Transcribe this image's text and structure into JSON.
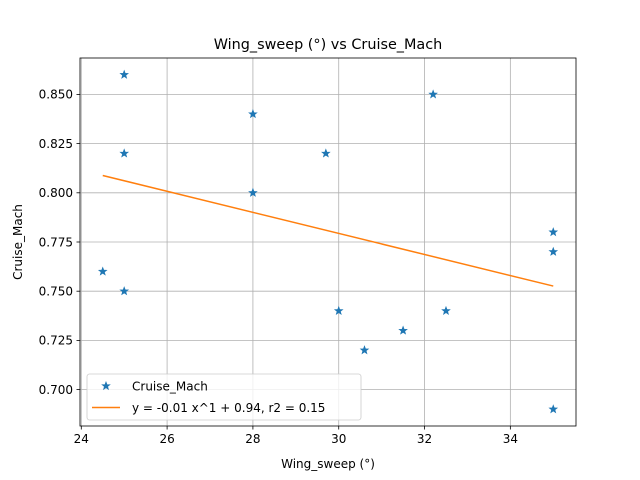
{
  "chart_data": {
    "type": "scatter",
    "title": "Wing_sweep (°) vs Cruise_Mach",
    "xlabel": "Wing_sweep (°)",
    "ylabel": "Cruise_Mach",
    "xlim": [
      23.97,
      35.53
    ],
    "ylim": [
      0.6815,
      0.8685
    ],
    "xticks": [
      24,
      26,
      28,
      30,
      32,
      34
    ],
    "xtick_labels": [
      "24",
      "26",
      "28",
      "30",
      "32",
      "34"
    ],
    "yticks": [
      0.7,
      0.725,
      0.75,
      0.775,
      0.8,
      0.825,
      0.85
    ],
    "ytick_labels": [
      "0.700",
      "0.725",
      "0.750",
      "0.775",
      "0.800",
      "0.825",
      "0.850"
    ],
    "grid": true,
    "legend_position": "lower-left",
    "series": [
      {
        "name": "Cruise_Mach",
        "kind": "scatter",
        "marker": "star",
        "color": "#1f77b4",
        "points": [
          {
            "x": 24.5,
            "y": 0.76
          },
          {
            "x": 25.0,
            "y": 0.86
          },
          {
            "x": 25.0,
            "y": 0.82
          },
          {
            "x": 25.0,
            "y": 0.75
          },
          {
            "x": 28.0,
            "y": 0.84
          },
          {
            "x": 28.0,
            "y": 0.8
          },
          {
            "x": 29.7,
            "y": 0.82
          },
          {
            "x": 30.0,
            "y": 0.74
          },
          {
            "x": 30.6,
            "y": 0.72
          },
          {
            "x": 31.5,
            "y": 0.73
          },
          {
            "x": 32.2,
            "y": 0.85
          },
          {
            "x": 32.5,
            "y": 0.74
          },
          {
            "x": 35.0,
            "y": 0.78
          },
          {
            "x": 35.0,
            "y": 0.77
          },
          {
            "x": 35.0,
            "y": 0.69
          }
        ]
      },
      {
        "name": "y = -0.01 x^1 + 0.94, r2 = 0.15",
        "kind": "line",
        "color": "#ff7f0e",
        "points": [
          {
            "x": 24.5,
            "y": 0.8088
          },
          {
            "x": 35.0,
            "y": 0.7526
          }
        ]
      }
    ]
  }
}
